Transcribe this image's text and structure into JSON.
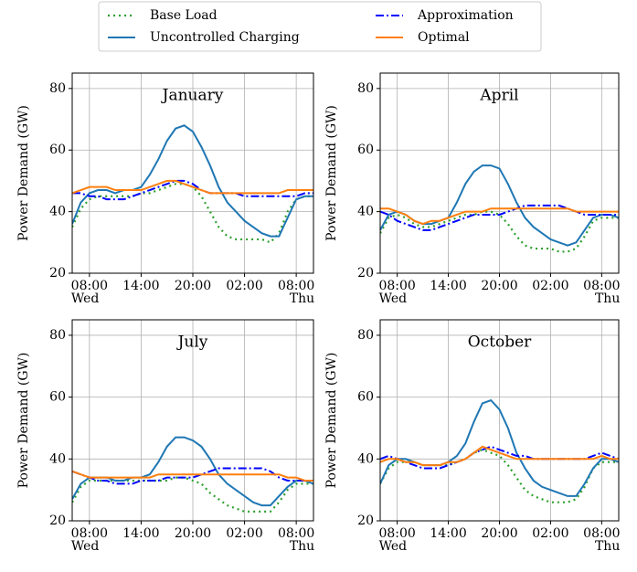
{
  "chart_data": [
    {
      "type": "line",
      "title": "January",
      "ylabel": "Power Demand (GW)",
      "x": [
        6,
        7,
        8,
        9,
        10,
        11,
        12,
        13,
        14,
        15,
        16,
        17,
        18,
        19,
        20,
        21,
        22,
        23,
        24,
        25,
        26,
        27,
        28,
        29,
        30,
        31,
        32,
        33,
        34
      ],
      "xlim": [
        6,
        34
      ],
      "ylim": [
        20,
        85
      ],
      "yticks": [
        20,
        40,
        60,
        80
      ],
      "grid": true,
      "xticks": [
        {
          "value": 8,
          "label": "08:00"
        },
        {
          "value": 14,
          "label": "14:00"
        },
        {
          "value": 20,
          "label": "20:00"
        },
        {
          "value": 26,
          "label": "02:00"
        },
        {
          "value": 32,
          "label": "08:00"
        }
      ],
      "xday_labels": [
        {
          "value": 8,
          "label": "Wed"
        },
        {
          "value": 32,
          "label": "Thu"
        }
      ],
      "series": [
        {
          "name": "Base Load",
          "color": "#2ca02c",
          "linestyle": "dotted",
          "values": [
            35,
            41,
            44,
            45,
            45,
            45,
            45,
            45,
            46,
            46,
            47,
            48,
            49,
            49,
            48,
            45,
            40,
            35,
            32,
            31,
            31,
            31,
            31,
            30,
            33,
            40,
            44,
            45,
            45
          ]
        },
        {
          "name": "Uncontrolled Charging",
          "color": "#1f77b4",
          "linestyle": "solid",
          "values": [
            36,
            43,
            46,
            47,
            47,
            46,
            47,
            47,
            48,
            52,
            57,
            63,
            67,
            68,
            66,
            61,
            55,
            48,
            43,
            40,
            37,
            35,
            33,
            32,
            32,
            38,
            44,
            45,
            45
          ]
        },
        {
          "name": "Approximation",
          "color": "#0000ff",
          "linestyle": "dashdot",
          "values": [
            46,
            46,
            45,
            45,
            44,
            44,
            44,
            45,
            46,
            47,
            48,
            49,
            50,
            50,
            49,
            47,
            46,
            46,
            46,
            46,
            45,
            45,
            45,
            45,
            45,
            45,
            45,
            46,
            46
          ]
        },
        {
          "name": "Optimal",
          "color": "#ff7f0e",
          "linestyle": "solid",
          "values": [
            46,
            47,
            48,
            48,
            48,
            47,
            47,
            47,
            47,
            48,
            49,
            50,
            50,
            49,
            48,
            47,
            46,
            46,
            46,
            46,
            46,
            46,
            46,
            46,
            46,
            47,
            47,
            47,
            47
          ]
        }
      ]
    },
    {
      "type": "line",
      "title": "April",
      "ylabel": "Power Demand (GW)",
      "x": [
        6,
        7,
        8,
        9,
        10,
        11,
        12,
        13,
        14,
        15,
        16,
        17,
        18,
        19,
        20,
        21,
        22,
        23,
        24,
        25,
        26,
        27,
        28,
        29,
        30,
        31,
        32,
        33,
        34
      ],
      "xlim": [
        6,
        34
      ],
      "ylim": [
        20,
        85
      ],
      "yticks": [
        20,
        40,
        60,
        80
      ],
      "grid": true,
      "xticks": [
        {
          "value": 8,
          "label": "08:00"
        },
        {
          "value": 14,
          "label": "14:00"
        },
        {
          "value": 20,
          "label": "20:00"
        },
        {
          "value": 26,
          "label": "02:00"
        },
        {
          "value": 32,
          "label": "08:00"
        }
      ],
      "xday_labels": [
        {
          "value": 8,
          "label": "Wed"
        },
        {
          "value": 32,
          "label": "Thu"
        }
      ],
      "series": [
        {
          "name": "Base Load",
          "color": "#2ca02c",
          "linestyle": "dotted",
          "values": [
            33,
            38,
            39,
            38,
            36,
            35,
            35,
            36,
            37,
            38,
            39,
            39,
            40,
            40,
            39,
            36,
            32,
            29,
            28,
            28,
            28,
            27,
            27,
            28,
            32,
            37,
            38,
            38,
            38
          ]
        },
        {
          "name": "Uncontrolled Charging",
          "color": "#1f77b4",
          "linestyle": "solid",
          "values": [
            34,
            39,
            40,
            39,
            37,
            36,
            36,
            37,
            38,
            43,
            49,
            53,
            55,
            55,
            54,
            49,
            43,
            38,
            35,
            33,
            31,
            30,
            29,
            30,
            34,
            38,
            39,
            39,
            38
          ]
        },
        {
          "name": "Approximation",
          "color": "#0000ff",
          "linestyle": "dashdot",
          "values": [
            40,
            39,
            37,
            36,
            35,
            34,
            34,
            35,
            36,
            37,
            38,
            39,
            39,
            39,
            39,
            40,
            41,
            42,
            42,
            42,
            42,
            42,
            41,
            40,
            39,
            39,
            39,
            39,
            39
          ]
        },
        {
          "name": "Optimal",
          "color": "#ff7f0e",
          "linestyle": "solid",
          "values": [
            41,
            41,
            40,
            39,
            37,
            36,
            37,
            37,
            38,
            39,
            40,
            40,
            40,
            41,
            41,
            41,
            41,
            41,
            41,
            41,
            41,
            41,
            41,
            40,
            40,
            40,
            40,
            40,
            40
          ]
        }
      ]
    },
    {
      "type": "line",
      "title": "July",
      "ylabel": "Power Demand (GW)",
      "x": [
        6,
        7,
        8,
        9,
        10,
        11,
        12,
        13,
        14,
        15,
        16,
        17,
        18,
        19,
        20,
        21,
        22,
        23,
        24,
        25,
        26,
        27,
        28,
        29,
        30,
        31,
        32,
        33,
        34
      ],
      "xlim": [
        6,
        34
      ],
      "ylim": [
        20,
        85
      ],
      "yticks": [
        20,
        40,
        60,
        80
      ],
      "grid": true,
      "xticks": [
        {
          "value": 8,
          "label": "08:00"
        },
        {
          "value": 14,
          "label": "14:00"
        },
        {
          "value": 20,
          "label": "20:00"
        },
        {
          "value": 26,
          "label": "02:00"
        },
        {
          "value": 32,
          "label": "08:00"
        }
      ],
      "xday_labels": [
        {
          "value": 8,
          "label": "Wed"
        },
        {
          "value": 32,
          "label": "Thu"
        }
      ],
      "series": [
        {
          "name": "Base Load",
          "color": "#2ca02c",
          "linestyle": "dotted",
          "values": [
            26,
            31,
            33,
            33,
            33,
            33,
            33,
            33,
            33,
            33,
            33,
            33,
            34,
            34,
            33,
            32,
            29,
            27,
            25,
            24,
            23,
            23,
            23,
            23,
            26,
            30,
            32,
            32,
            32
          ]
        },
        {
          "name": "Uncontrolled Charging",
          "color": "#1f77b4",
          "linestyle": "solid",
          "values": [
            27,
            32,
            34,
            34,
            34,
            33,
            33,
            34,
            34,
            35,
            39,
            44,
            47,
            47,
            46,
            44,
            40,
            35,
            32,
            30,
            28,
            26,
            25,
            25,
            28,
            31,
            33,
            33,
            32
          ]
        },
        {
          "name": "Approximation",
          "color": "#0000ff",
          "linestyle": "dashdot",
          "values": [
            36,
            35,
            34,
            33,
            33,
            32,
            32,
            32,
            33,
            33,
            33,
            34,
            34,
            34,
            34,
            35,
            36,
            37,
            37,
            37,
            37,
            37,
            37,
            36,
            34,
            33,
            33,
            33,
            33
          ]
        },
        {
          "name": "Optimal",
          "color": "#ff7f0e",
          "linestyle": "solid",
          "values": [
            36,
            35,
            34,
            34,
            34,
            34,
            34,
            34,
            34,
            34,
            35,
            35,
            35,
            35,
            35,
            35,
            35,
            35,
            35,
            35,
            35,
            35,
            35,
            35,
            35,
            34,
            34,
            33,
            33
          ]
        }
      ]
    },
    {
      "type": "line",
      "title": "October",
      "ylabel": "Power Demand (GW)",
      "x": [
        6,
        7,
        8,
        9,
        10,
        11,
        12,
        13,
        14,
        15,
        16,
        17,
        18,
        19,
        20,
        21,
        22,
        23,
        24,
        25,
        26,
        27,
        28,
        29,
        30,
        31,
        32,
        33,
        34
      ],
      "xlim": [
        6,
        34
      ],
      "ylim": [
        20,
        85
      ],
      "yticks": [
        20,
        40,
        60,
        80
      ],
      "grid": true,
      "xticks": [
        {
          "value": 8,
          "label": "08:00"
        },
        {
          "value": 14,
          "label": "14:00"
        },
        {
          "value": 20,
          "label": "20:00"
        },
        {
          "value": 26,
          "label": "02:00"
        },
        {
          "value": 32,
          "label": "08:00"
        }
      ],
      "xday_labels": [
        {
          "value": 8,
          "label": "Wed"
        },
        {
          "value": 32,
          "label": "Thu"
        }
      ],
      "series": [
        {
          "name": "Base Load",
          "color": "#2ca02c",
          "linestyle": "dotted",
          "values": [
            32,
            37,
            39,
            39,
            39,
            38,
            38,
            38,
            38,
            39,
            40,
            42,
            43,
            42,
            41,
            38,
            34,
            30,
            28,
            27,
            26,
            26,
            26,
            27,
            31,
            37,
            39,
            39,
            39
          ]
        },
        {
          "name": "Uncontrolled Charging",
          "color": "#1f77b4",
          "linestyle": "solid",
          "values": [
            32,
            38,
            40,
            40,
            39,
            38,
            38,
            38,
            39,
            41,
            45,
            52,
            58,
            59,
            56,
            50,
            42,
            37,
            33,
            31,
            30,
            29,
            28,
            28,
            32,
            37,
            40,
            40,
            39
          ]
        },
        {
          "name": "Approximation",
          "color": "#0000ff",
          "linestyle": "dashdot",
          "values": [
            40,
            41,
            40,
            39,
            38,
            37,
            37,
            37,
            38,
            39,
            40,
            42,
            43,
            44,
            43,
            42,
            41,
            41,
            40,
            40,
            40,
            40,
            40,
            40,
            40,
            41,
            42,
            41,
            40
          ]
        },
        {
          "name": "Optimal",
          "color": "#ff7f0e",
          "linestyle": "solid",
          "values": [
            39,
            40,
            40,
            39,
            39,
            38,
            38,
            38,
            39,
            39,
            40,
            42,
            44,
            43,
            42,
            41,
            40,
            40,
            40,
            40,
            40,
            40,
            40,
            40,
            40,
            40,
            41,
            40,
            40
          ]
        }
      ]
    }
  ]
}
